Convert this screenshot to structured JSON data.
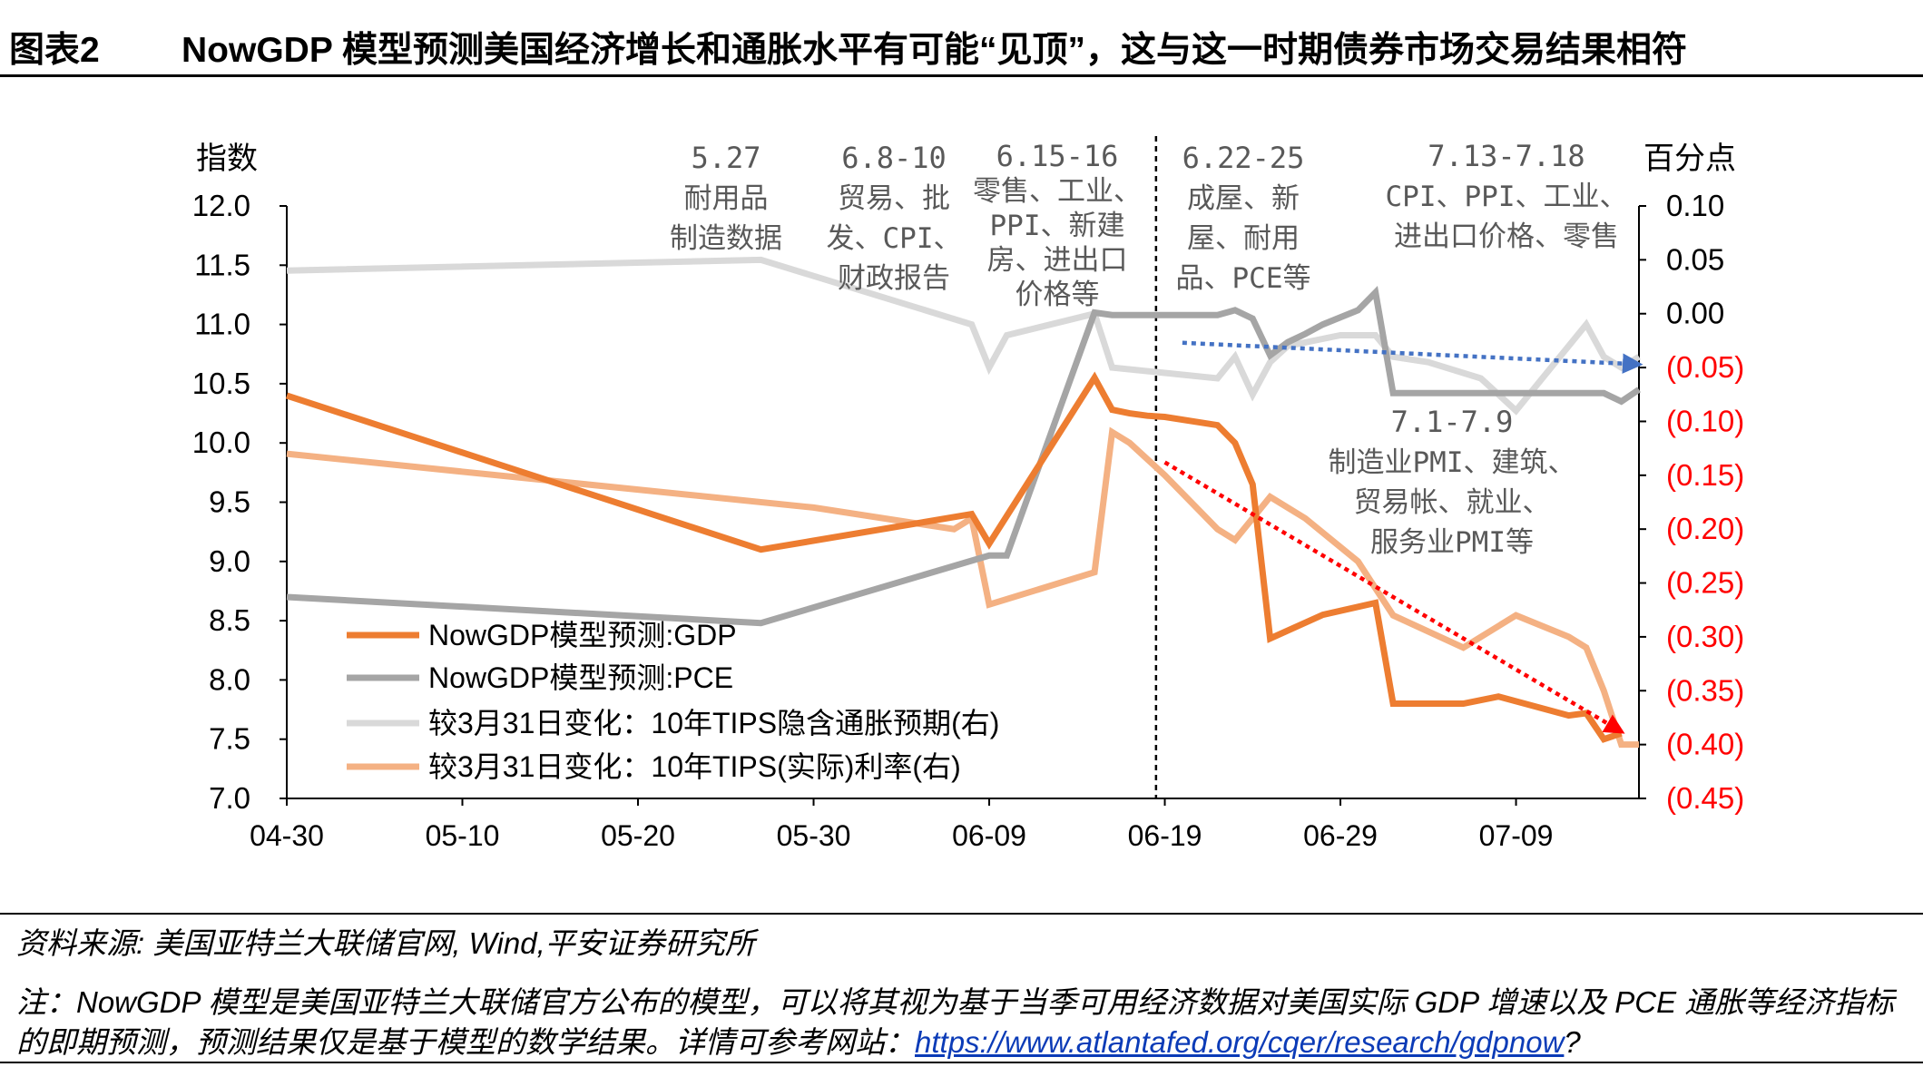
{
  "header": {
    "label": "图表2",
    "title": "NowGDP 模型预测美国经济增长和通胀水平有可能“见顶”，这与这一时期债券市场交易结果相符"
  },
  "chart_data": {
    "type": "line",
    "left_axis": {
      "label": "指数",
      "ylim": [
        7.0,
        12.0
      ],
      "ticks": [
        12.0,
        11.5,
        11.0,
        10.5,
        10.0,
        9.5,
        9.0,
        8.5,
        8.0,
        7.5,
        7.0
      ],
      "tick_labels": [
        "12.0",
        "11.5",
        "11.0",
        "10.5",
        "10.0",
        "9.5",
        "9.0",
        "8.5",
        "8.0",
        "7.5",
        "7.0"
      ]
    },
    "right_axis": {
      "label": "百分点",
      "ylim": [
        -0.45,
        0.1
      ],
      "ticks": [
        0.1,
        0.05,
        0.0,
        -0.05,
        -0.1,
        -0.15,
        -0.2,
        -0.25,
        -0.3,
        -0.35,
        -0.4,
        -0.45
      ],
      "tick_labels": [
        "0.10",
        "0.05",
        "0.00",
        "(0.05)",
        "(0.10)",
        "(0.15)",
        "(0.20)",
        "(0.25)",
        "(0.30)",
        "(0.35)",
        "(0.40)",
        "(0.45)"
      ],
      "positive_color": "#000000",
      "negative_color": "#ff0000"
    },
    "x_ticks": [
      "04-30",
      "05-10",
      "05-20",
      "05-30",
      "06-09",
      "06-19",
      "06-29",
      "07-09"
    ],
    "x_tick_days": [
      0,
      10,
      20,
      30,
      40,
      50,
      60,
      70
    ],
    "x_range_days": [
      0,
      77
    ],
    "series": [
      {
        "name": "NowGDP模型预测:GDP",
        "axis": "left",
        "color": "#ed7d31",
        "points": [
          [
            0,
            10.4
          ],
          [
            27,
            9.1
          ],
          [
            39,
            9.4
          ],
          [
            40,
            9.15
          ],
          [
            46,
            10.55
          ],
          [
            47,
            10.28
          ],
          [
            48,
            10.25
          ],
          [
            49,
            10.23
          ],
          [
            50,
            10.22
          ],
          [
            53,
            10.15
          ],
          [
            54,
            10.0
          ],
          [
            55,
            9.65
          ],
          [
            56,
            8.35
          ],
          [
            59,
            8.55
          ],
          [
            62,
            8.65
          ],
          [
            63,
            7.8
          ],
          [
            65,
            7.8
          ],
          [
            67,
            7.8
          ],
          [
            69,
            7.86
          ],
          [
            73,
            7.7
          ],
          [
            74,
            7.72
          ],
          [
            75,
            7.5
          ],
          [
            76,
            7.55
          ]
        ]
      },
      {
        "name": "NowGDP模型预测:PCE",
        "axis": "left",
        "color": "#a5a5a5",
        "points": [
          [
            0,
            8.7
          ],
          [
            27,
            8.48
          ],
          [
            40,
            9.05
          ],
          [
            41,
            9.05
          ],
          [
            46,
            11.1
          ],
          [
            47,
            11.08
          ],
          [
            50,
            11.08
          ],
          [
            53,
            11.08
          ],
          [
            54,
            11.12
          ],
          [
            55,
            11.05
          ],
          [
            56,
            10.74
          ],
          [
            57,
            10.85
          ],
          [
            58,
            10.92
          ],
          [
            59,
            11.0
          ],
          [
            61,
            11.12
          ],
          [
            62,
            11.27
          ],
          [
            63,
            10.42
          ],
          [
            65,
            10.42
          ],
          [
            75,
            10.42
          ],
          [
            76,
            10.35
          ],
          [
            77,
            10.45
          ]
        ]
      },
      {
        "name": "较3月31日变化：10年TIPS隐含通胀预期(右)",
        "axis": "right",
        "color": "#d9d9d9",
        "points": [
          [
            0,
            0.04
          ],
          [
            27,
            0.05
          ],
          [
            39,
            -0.01
          ],
          [
            40,
            -0.05
          ],
          [
            41,
            -0.02
          ],
          [
            46,
            0.0
          ],
          [
            47,
            -0.05
          ],
          [
            50,
            -0.055
          ],
          [
            53,
            -0.06
          ],
          [
            54,
            -0.04
          ],
          [
            55,
            -0.075
          ],
          [
            56,
            -0.045
          ],
          [
            57,
            -0.03
          ],
          [
            60,
            -0.02
          ],
          [
            62,
            -0.02
          ],
          [
            63,
            -0.04
          ],
          [
            65,
            -0.045
          ],
          [
            68,
            -0.06
          ],
          [
            69,
            -0.075
          ],
          [
            70,
            -0.09
          ],
          [
            72,
            -0.05
          ],
          [
            74,
            -0.01
          ],
          [
            75,
            -0.04
          ],
          [
            76,
            -0.05
          ],
          [
            77,
            -0.04
          ]
        ]
      },
      {
        "name": "较3月31日变化：10年TIPS(实际)利率(右)",
        "axis": "right",
        "color": "#f4b183",
        "points": [
          [
            0,
            -0.13
          ],
          [
            30,
            -0.18
          ],
          [
            38,
            -0.2
          ],
          [
            39,
            -0.19
          ],
          [
            40,
            -0.27
          ],
          [
            46,
            -0.24
          ],
          [
            47,
            -0.11
          ],
          [
            48,
            -0.12
          ],
          [
            50,
            -0.15
          ],
          [
            53,
            -0.2
          ],
          [
            54,
            -0.21
          ],
          [
            56,
            -0.17
          ],
          [
            58,
            -0.19
          ],
          [
            61,
            -0.23
          ],
          [
            63,
            -0.28
          ],
          [
            67,
            -0.31
          ],
          [
            70,
            -0.28
          ],
          [
            73,
            -0.3
          ],
          [
            74,
            -0.31
          ],
          [
            75,
            -0.35
          ],
          [
            76,
            -0.4
          ],
          [
            77,
            -0.4
          ]
        ]
      }
    ],
    "vertical_line_day": 49.5,
    "trend_arrows": [
      {
        "color": "#4472c4",
        "axis": "right",
        "from": [
          51,
          -0.027
        ],
        "to": [
          77,
          -0.047
        ]
      },
      {
        "color": "#ff0000",
        "axis": "right",
        "from": [
          50,
          -0.138
        ],
        "to": [
          76,
          -0.388
        ]
      }
    ],
    "annotations": [
      {
        "lines": [
          "5.27",
          "耐用品",
          "制造数据"
        ]
      },
      {
        "lines": [
          "6.8-10",
          "贸易、批",
          "发、CPI、",
          "财政报告"
        ]
      },
      {
        "lines": [
          "6.15-16",
          "零售、工业、",
          "PPI、新建",
          "房、进出口",
          "价格等"
        ]
      },
      {
        "lines": [
          "6.22-25",
          "成屋、新",
          "屋、耐用",
          "品、PCE等"
        ]
      },
      {
        "lines": [
          "7.13-7.18",
          "CPI、PPI、工业、",
          "进出口价格、零售"
        ]
      },
      {
        "lines": [
          "7.1-7.9",
          "制造业PMI、建筑、",
          "贸易帐、就业、",
          "服务业PMI等"
        ]
      }
    ]
  },
  "footer": {
    "source": "资料来源: 美国亚特兰大联储官网, Wind,平安证券研究所",
    "note_text": "注：NowGDP 模型是美国亚特兰大联储官方公布的模型，可以将其视为基于当季可用经济数据对美国实际 GDP 增速以及 PCE 通胀等经济指标的即期预测，预测结果仅是基于模型的数学结果。详情可参考网站：",
    "note_link": "https://www.atlantafed.org/cqer/research/gdpnow",
    "note_tail": "?"
  }
}
